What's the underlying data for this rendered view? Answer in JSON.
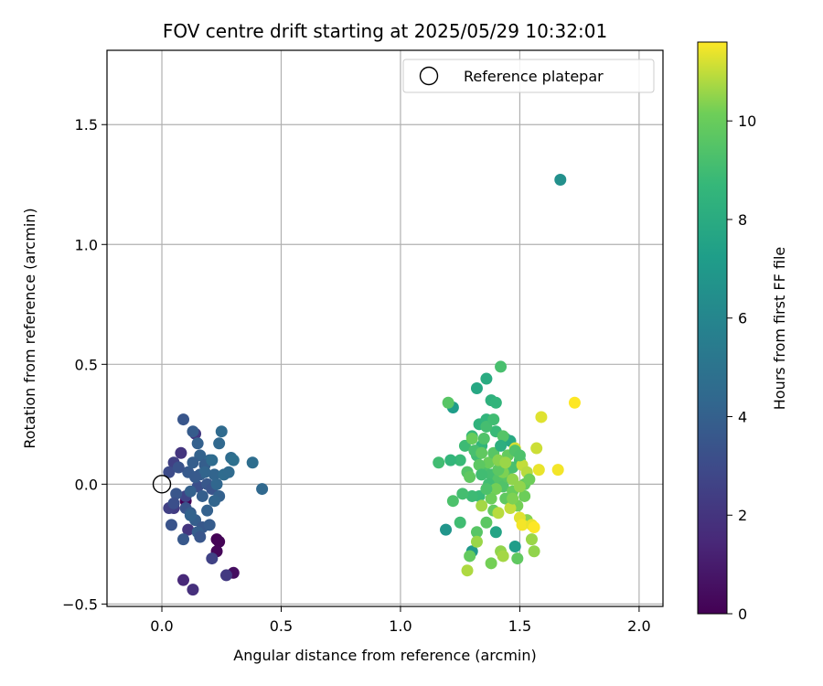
{
  "chart_data": {
    "type": "scatter",
    "title": "FOV centre drift starting at 2025/05/29 10:32:01",
    "xlabel": "Angular distance from reference (arcmin)",
    "ylabel": "Rotation from reference (arcmin)",
    "xlim": [
      -0.23,
      2.1
    ],
    "ylim": [
      -0.51,
      1.81
    ],
    "xticks": [
      0.0,
      0.5,
      1.0,
      1.5,
      2.0
    ],
    "xtick_labels": [
      "0.0",
      "0.5",
      "1.0",
      "1.5",
      "2.0"
    ],
    "yticks": [
      -0.5,
      0.0,
      0.5,
      1.0,
      1.5
    ],
    "ytick_labels": [
      "−0.5",
      "0.0",
      "0.5",
      "1.0",
      "1.5"
    ],
    "grid": true,
    "legend": {
      "placement": "top-right",
      "entries": [
        "Reference platepar"
      ]
    },
    "colorbar": {
      "label": "Hours from first FF file",
      "range": [
        0,
        11.6
      ],
      "ticks": [
        0,
        2,
        4,
        6,
        8,
        10
      ],
      "tick_labels": [
        "0",
        "2",
        "4",
        "6",
        "8",
        "10"
      ],
      "colormap": "viridis"
    },
    "reference_point": {
      "name": "Reference platepar",
      "x": 0.0,
      "y": 0.0
    },
    "points": [
      [
        0.1,
        -0.07,
        0.0
      ],
      [
        0.23,
        -0.23,
        0.05
      ],
      [
        0.24,
        -0.24,
        0.1
      ],
      [
        0.23,
        -0.28,
        0.2
      ],
      [
        0.3,
        -0.37,
        0.5
      ],
      [
        0.09,
        -0.4,
        1.5
      ],
      [
        0.13,
        -0.44,
        1.8
      ],
      [
        0.27,
        -0.38,
        2.2
      ],
      [
        0.21,
        -0.31,
        2.6
      ],
      [
        0.11,
        -0.19,
        2.0
      ],
      [
        0.05,
        -0.1,
        2.3
      ],
      [
        0.03,
        -0.1,
        2.5
      ],
      [
        0.08,
        0.13,
        2.0
      ],
      [
        0.14,
        0.21,
        2.2
      ],
      [
        0.05,
        0.09,
        2.5
      ],
      [
        0.03,
        0.05,
        3.0
      ],
      [
        0.1,
        -0.05,
        2.7
      ],
      [
        0.15,
        -0.01,
        3.2
      ],
      [
        0.09,
        0.27,
        3.5
      ],
      [
        0.13,
        0.22,
        3.8
      ],
      [
        0.15,
        0.17,
        4.0
      ],
      [
        0.16,
        0.12,
        4.1
      ],
      [
        0.25,
        0.22,
        4.5
      ],
      [
        0.24,
        0.17,
        4.4
      ],
      [
        0.2,
        0.1,
        4.3
      ],
      [
        0.18,
        0.08,
        3.9
      ],
      [
        0.16,
        0.04,
        3.8
      ],
      [
        0.19,
        0.0,
        3.6
      ],
      [
        0.21,
        -0.02,
        3.4
      ],
      [
        0.17,
        -0.05,
        3.9
      ],
      [
        0.12,
        -0.03,
        4.0
      ],
      [
        0.11,
        0.05,
        3.7
      ],
      [
        0.07,
        0.07,
        3.3
      ],
      [
        0.06,
        -0.04,
        3.5
      ],
      [
        0.05,
        -0.08,
        3.2
      ],
      [
        0.1,
        -0.1,
        3.4
      ],
      [
        0.12,
        -0.12,
        3.8
      ],
      [
        0.14,
        -0.15,
        3.9
      ],
      [
        0.17,
        -0.18,
        3.6
      ],
      [
        0.2,
        -0.17,
        3.8
      ],
      [
        0.15,
        -0.2,
        3.9
      ],
      [
        0.09,
        -0.23,
        3.6
      ],
      [
        0.04,
        -0.17,
        3.4
      ],
      [
        0.22,
        0.04,
        4.2
      ],
      [
        0.23,
        0.0,
        4.3
      ],
      [
        0.24,
        -0.05,
        4.0
      ],
      [
        0.26,
        0.04,
        4.6
      ],
      [
        0.28,
        0.05,
        4.5
      ],
      [
        0.29,
        0.11,
        4.6
      ],
      [
        0.3,
        0.1,
        4.8
      ],
      [
        0.38,
        0.09,
        4.7
      ],
      [
        0.42,
        -0.02,
        4.4
      ],
      [
        0.21,
        0.1,
        4.6
      ],
      [
        0.18,
        0.05,
        4.2
      ],
      [
        0.14,
        0.03,
        3.7
      ],
      [
        0.12,
        -0.13,
        4.1
      ],
      [
        0.16,
        -0.22,
        3.5
      ],
      [
        0.22,
        -0.07,
        4.2
      ],
      [
        0.19,
        -0.11,
        4.0
      ],
      [
        0.13,
        0.09,
        3.9
      ],
      [
        1.67,
        1.27,
        6.5
      ],
      [
        1.19,
        -0.19,
        6.8
      ],
      [
        1.3,
        -0.28,
        7.0
      ],
      [
        1.48,
        -0.26,
        7.2
      ],
      [
        1.4,
        -0.2,
        7.6
      ],
      [
        1.22,
        0.32,
        7.2
      ],
      [
        1.32,
        0.4,
        7.8
      ],
      [
        1.36,
        0.44,
        8.0
      ],
      [
        1.38,
        0.35,
        8.3
      ],
      [
        1.4,
        0.34,
        8.5
      ],
      [
        1.42,
        0.49,
        9.2
      ],
      [
        1.33,
        0.25,
        8.4
      ],
      [
        1.36,
        0.27,
        8.5
      ],
      [
        1.4,
        0.22,
        8.8
      ],
      [
        1.44,
        0.19,
        8.6
      ],
      [
        1.46,
        0.18,
        7.9
      ],
      [
        1.34,
        0.16,
        8.6
      ],
      [
        1.3,
        0.2,
        8.7
      ],
      [
        1.27,
        0.16,
        8.9
      ],
      [
        1.25,
        0.1,
        8.8
      ],
      [
        1.21,
        0.1,
        8.6
      ],
      [
        1.16,
        0.09,
        9.0
      ],
      [
        1.2,
        0.34,
        9.6
      ],
      [
        1.28,
        0.05,
        9.2
      ],
      [
        1.32,
        0.12,
        9.0
      ],
      [
        1.35,
        0.07,
        9.3
      ],
      [
        1.38,
        0.04,
        9.1
      ],
      [
        1.41,
        0.02,
        9.5
      ],
      [
        1.43,
        -0.01,
        9.4
      ],
      [
        1.45,
        0.03,
        9.6
      ],
      [
        1.47,
        0.07,
        9.2
      ],
      [
        1.5,
        0.1,
        9.0
      ],
      [
        1.37,
        0.0,
        9.0
      ],
      [
        1.33,
        -0.05,
        8.8
      ],
      [
        1.3,
        -0.05,
        8.9
      ],
      [
        1.26,
        -0.04,
        9.1
      ],
      [
        1.22,
        -0.07,
        9.3
      ],
      [
        1.25,
        -0.16,
        9.0
      ],
      [
        1.32,
        -0.2,
        9.6
      ],
      [
        1.36,
        -0.16,
        9.7
      ],
      [
        1.39,
        -0.11,
        9.9
      ],
      [
        1.44,
        -0.06,
        9.8
      ],
      [
        1.47,
        -0.03,
        10.0
      ],
      [
        1.49,
        -0.09,
        10.2
      ],
      [
        1.52,
        -0.05,
        10.1
      ],
      [
        1.53,
        -0.15,
        10.4
      ],
      [
        1.55,
        -0.23,
        10.6
      ],
      [
        1.56,
        -0.28,
        10.5
      ],
      [
        1.49,
        -0.31,
        9.8
      ],
      [
        1.38,
        -0.33,
        10.2
      ],
      [
        1.42,
        -0.28,
        10.5
      ],
      [
        1.43,
        -0.3,
        10.7
      ],
      [
        1.29,
        -0.3,
        9.9
      ],
      [
        1.28,
        -0.36,
        10.8
      ],
      [
        1.32,
        -0.24,
        10.6
      ],
      [
        1.34,
        -0.09,
        10.7
      ],
      [
        1.41,
        -0.12,
        10.9
      ],
      [
        1.46,
        -0.1,
        11.0
      ],
      [
        1.5,
        -0.14,
        11.3
      ],
      [
        1.51,
        -0.17,
        11.5
      ],
      [
        1.55,
        -0.17,
        11.4
      ],
      [
        1.56,
        -0.18,
        11.6
      ],
      [
        1.45,
        0.12,
        10.8
      ],
      [
        1.48,
        0.15,
        11.2
      ],
      [
        1.51,
        0.08,
        11.0
      ],
      [
        1.53,
        0.05,
        10.9
      ],
      [
        1.57,
        0.15,
        11.1
      ],
      [
        1.59,
        0.28,
        11.3
      ],
      [
        1.58,
        0.06,
        11.4
      ],
      [
        1.66,
        0.06,
        11.5
      ],
      [
        1.73,
        0.34,
        11.6
      ],
      [
        1.43,
        0.05,
        10.3
      ],
      [
        1.47,
        0.02,
        10.5
      ],
      [
        1.4,
        -0.02,
        10.2
      ],
      [
        1.37,
        0.09,
        10.0
      ],
      [
        1.43,
        0.2,
        9.5
      ],
      [
        1.45,
        0.12,
        9.9
      ],
      [
        1.39,
        0.13,
        9.6
      ],
      [
        1.35,
        0.19,
        9.4
      ],
      [
        1.31,
        0.14,
        9.2
      ],
      [
        1.28,
        0.05,
        9.5
      ],
      [
        1.29,
        0.03,
        9.8
      ],
      [
        1.33,
        0.08,
        9.7
      ],
      [
        1.36,
        0.24,
        9.1
      ],
      [
        1.39,
        0.27,
        9.0
      ],
      [
        1.48,
        0.14,
        9.4
      ],
      [
        1.5,
        0.12,
        9.3
      ],
      [
        1.52,
        0.0,
        9.9
      ],
      [
        1.54,
        0.02,
        10.1
      ],
      [
        1.41,
        0.06,
        9.7
      ],
      [
        1.3,
        0.19,
        10.0
      ],
      [
        1.34,
        0.13,
        9.8
      ],
      [
        1.41,
        0.1,
        10.4
      ],
      [
        1.44,
        0.09,
        10.6
      ],
      [
        1.47,
        -0.06,
        10.3
      ],
      [
        1.5,
        -0.01,
        10.5
      ],
      [
        1.38,
        -0.06,
        10.1
      ],
      [
        1.36,
        -0.02,
        9.3
      ],
      [
        1.34,
        0.04,
        9.0
      ],
      [
        1.42,
        0.16,
        8.2
      ]
    ]
  }
}
